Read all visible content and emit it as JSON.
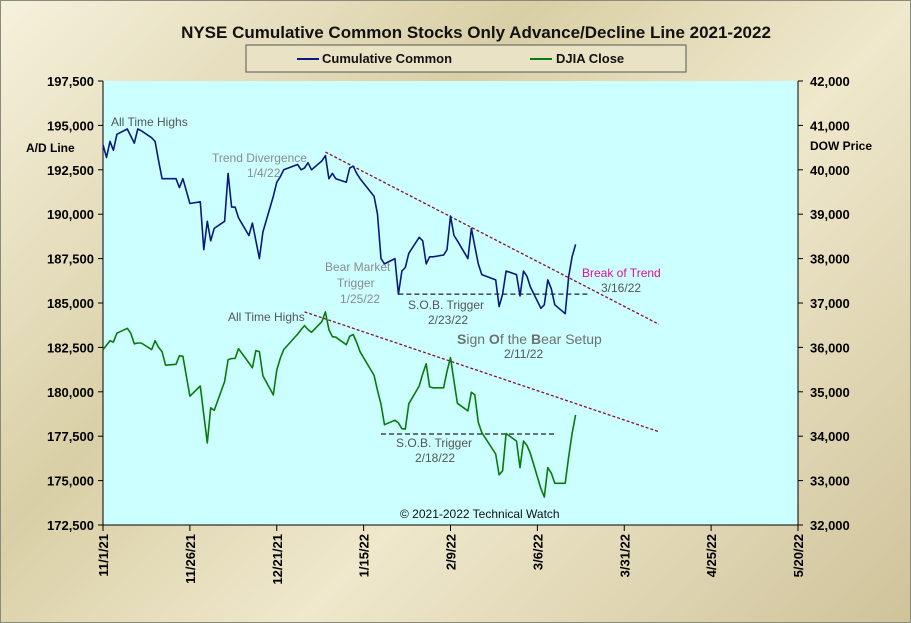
{
  "chart_data": {
    "type": "line",
    "title": "NYSE Cumulative  Common Stocks Only Advance/Decline Line 2021-2022",
    "left_axis_label": "A/D Line",
    "right_axis_label": "DOW Price",
    "copyright": "© 2021-2022  Technical Watch",
    "colors": {
      "plot_background": "#ccffff",
      "ad_line": "#0a1a7a",
      "djia": "#0a7a0a",
      "trendline": "#8b1030",
      "support": "#222222",
      "pink": "#e0109a"
    },
    "x_ticks": [
      "11/1/21",
      "11/26/21",
      "12/21/21",
      "1/15/22",
      "2/9/22",
      "3/6/22",
      "3/31/22",
      "4/25/22",
      "5/20/22"
    ],
    "x_range": [
      "2021-11-01",
      "2022-05-20"
    ],
    "y_left": {
      "range": [
        172500,
        197500
      ],
      "ticks": [
        "172,500",
        "175,000",
        "177,500",
        "180,000",
        "182,500",
        "185,000",
        "187,500",
        "190,000",
        "192,500",
        "195,000",
        "197,500"
      ]
    },
    "y_right": {
      "range": [
        32000,
        42000
      ],
      "ticks": [
        "32,000",
        "33,000",
        "34,000",
        "35,000",
        "36,000",
        "37,000",
        "38,000",
        "39,000",
        "40,000",
        "41,000",
        "42,000"
      ]
    },
    "grid": false,
    "legend": {
      "position": "top-center",
      "entries": [
        "Cumulative Common",
        "DJIA Close"
      ]
    },
    "series": [
      {
        "name": "Cumulative Common",
        "axis": "left",
        "points": [
          [
            "2021-11-01",
            193.9
          ],
          [
            "2021-11-02",
            193.2
          ],
          [
            "2021-11-03",
            194.1
          ],
          [
            "2021-11-04",
            193.6
          ],
          [
            "2021-11-05",
            194.5
          ],
          [
            "2021-11-08",
            194.8
          ],
          [
            "2021-11-09",
            194.4
          ],
          [
            "2021-11-10",
            194.0
          ],
          [
            "2021-11-11",
            194.8
          ],
          [
            "2021-11-12",
            194.7
          ],
          [
            "2021-11-15",
            194.3
          ],
          [
            "2021-11-16",
            194.1
          ],
          [
            "2021-11-17",
            193.0
          ],
          [
            "2021-11-18",
            192.0
          ],
          [
            "2021-11-19",
            192.0
          ],
          [
            "2021-11-22",
            192.0
          ],
          [
            "2021-11-23",
            191.5
          ],
          [
            "2021-11-24",
            192.0
          ],
          [
            "2021-11-26",
            190.6
          ],
          [
            "2021-11-29",
            190.7
          ],
          [
            "2021-11-30",
            188.0
          ],
          [
            "2021-12-01",
            189.6
          ],
          [
            "2021-12-02",
            188.5
          ],
          [
            "2021-12-03",
            189.2
          ],
          [
            "2021-12-06",
            189.6
          ],
          [
            "2021-12-07",
            192.3
          ],
          [
            "2021-12-08",
            190.4
          ],
          [
            "2021-12-09",
            190.4
          ],
          [
            "2021-12-10",
            189.8
          ],
          [
            "2021-12-13",
            188.8
          ],
          [
            "2021-12-14",
            189.5
          ],
          [
            "2021-12-15",
            188.5
          ],
          [
            "2021-12-16",
            187.5
          ],
          [
            "2021-12-17",
            189.0
          ],
          [
            "2021-12-20",
            191.0
          ],
          [
            "2021-12-21",
            191.8
          ],
          [
            "2021-12-22",
            192.1
          ],
          [
            "2021-12-23",
            192.5
          ],
          [
            "2021-12-27",
            192.8
          ],
          [
            "2021-12-28",
            192.5
          ],
          [
            "2021-12-29",
            192.6
          ],
          [
            "2021-12-30",
            192.9
          ],
          [
            "2021-12-31",
            192.5
          ],
          [
            "2022-01-03",
            193.0
          ],
          [
            "2022-01-04",
            193.3
          ],
          [
            "2022-01-05",
            192.0
          ],
          [
            "2022-01-06",
            192.3
          ],
          [
            "2022-01-07",
            192.0
          ],
          [
            "2022-01-10",
            191.8
          ],
          [
            "2022-01-11",
            192.6
          ],
          [
            "2022-01-12",
            192.7
          ],
          [
            "2022-01-13",
            192.3
          ],
          [
            "2022-01-14",
            192.0
          ],
          [
            "2022-01-18",
            191.0
          ],
          [
            "2022-01-19",
            190.0
          ],
          [
            "2022-01-20",
            187.5
          ],
          [
            "2022-01-21",
            187.2
          ],
          [
            "2022-01-24",
            187.5
          ],
          [
            "2022-01-25",
            185.5
          ],
          [
            "2022-01-26",
            186.8
          ],
          [
            "2022-01-27",
            187.0
          ],
          [
            "2022-01-28",
            187.8
          ],
          [
            "2022-01-31",
            188.7
          ],
          [
            "2022-02-01",
            188.5
          ],
          [
            "2022-02-02",
            187.2
          ],
          [
            "2022-02-03",
            187.6
          ],
          [
            "2022-02-04",
            187.6
          ],
          [
            "2022-02-07",
            187.7
          ],
          [
            "2022-02-08",
            188.0
          ],
          [
            "2022-02-09",
            189.9
          ],
          [
            "2022-02-10",
            188.8
          ],
          [
            "2022-02-11",
            188.5
          ],
          [
            "2022-02-14",
            187.5
          ],
          [
            "2022-02-15",
            189.2
          ],
          [
            "2022-02-16",
            188.2
          ],
          [
            "2022-02-17",
            187.2
          ],
          [
            "2022-02-18",
            186.6
          ],
          [
            "2022-02-22",
            186.3
          ],
          [
            "2022-02-23",
            184.8
          ],
          [
            "2022-02-24",
            185.5
          ],
          [
            "2022-02-25",
            186.8
          ],
          [
            "2022-02-28",
            186.6
          ],
          [
            "2022-03-01",
            185.4
          ],
          [
            "2022-03-02",
            186.8
          ],
          [
            "2022-03-03",
            186.5
          ],
          [
            "2022-03-04",
            185.9
          ],
          [
            "2022-03-07",
            184.7
          ],
          [
            "2022-03-08",
            184.9
          ],
          [
            "2022-03-09",
            186.3
          ],
          [
            "2022-03-10",
            185.8
          ],
          [
            "2022-03-11",
            184.9
          ],
          [
            "2022-03-14",
            184.4
          ],
          [
            "2022-03-15",
            186.5
          ],
          [
            "2022-03-16",
            187.6
          ],
          [
            "2022-03-17",
            188.3
          ]
        ]
      },
      {
        "name": "DJIA Close",
        "axis": "right",
        "points": [
          [
            "2021-11-01",
            35950
          ],
          [
            "2021-11-02",
            36050
          ],
          [
            "2021-11-03",
            36150
          ],
          [
            "2021-11-04",
            36120
          ],
          [
            "2021-11-05",
            36320
          ],
          [
            "2021-11-08",
            36430
          ],
          [
            "2021-11-09",
            36320
          ],
          [
            "2021-11-10",
            36080
          ],
          [
            "2021-11-11",
            36100
          ],
          [
            "2021-11-12",
            36100
          ],
          [
            "2021-11-15",
            35950
          ],
          [
            "2021-11-16",
            36150
          ],
          [
            "2021-11-17",
            36000
          ],
          [
            "2021-11-18",
            35900
          ],
          [
            "2021-11-19",
            35600
          ],
          [
            "2021-11-22",
            35620
          ],
          [
            "2021-11-23",
            35810
          ],
          [
            "2021-11-24",
            35800
          ],
          [
            "2021-11-26",
            34900
          ],
          [
            "2021-11-29",
            35130
          ],
          [
            "2021-11-30",
            34480
          ],
          [
            "2021-12-01",
            33850
          ],
          [
            "2021-12-02",
            34640
          ],
          [
            "2021-12-03",
            34580
          ],
          [
            "2021-12-06",
            35230
          ],
          [
            "2021-12-07",
            35720
          ],
          [
            "2021-12-08",
            35750
          ],
          [
            "2021-12-09",
            35750
          ],
          [
            "2021-12-10",
            35970
          ],
          [
            "2021-12-13",
            35650
          ],
          [
            "2021-12-14",
            35540
          ],
          [
            "2021-12-15",
            35930
          ],
          [
            "2021-12-16",
            35900
          ],
          [
            "2021-12-17",
            35360
          ],
          [
            "2021-12-20",
            34930
          ],
          [
            "2021-12-21",
            35490
          ],
          [
            "2021-12-22",
            35750
          ],
          [
            "2021-12-23",
            35950
          ],
          [
            "2021-12-27",
            36300
          ],
          [
            "2021-12-28",
            36400
          ],
          [
            "2021-12-29",
            36490
          ],
          [
            "2021-12-30",
            36400
          ],
          [
            "2021-12-31",
            36340
          ],
          [
            "2022-01-03",
            36580
          ],
          [
            "2022-01-04",
            36800
          ],
          [
            "2022-01-05",
            36400
          ],
          [
            "2022-01-06",
            36240
          ],
          [
            "2022-01-07",
            36230
          ],
          [
            "2022-01-10",
            36060
          ],
          [
            "2022-01-11",
            36250
          ],
          [
            "2022-01-12",
            36290
          ],
          [
            "2022-01-13",
            36110
          ],
          [
            "2022-01-14",
            35900
          ],
          [
            "2022-01-18",
            35370
          ],
          [
            "2022-01-19",
            35030
          ],
          [
            "2022-01-20",
            34720
          ],
          [
            "2022-01-21",
            34260
          ],
          [
            "2022-01-24",
            34360
          ],
          [
            "2022-01-25",
            34300
          ],
          [
            "2022-01-26",
            34170
          ],
          [
            "2022-01-27",
            34160
          ],
          [
            "2022-01-28",
            34730
          ],
          [
            "2022-01-31",
            35130
          ],
          [
            "2022-02-01",
            35400
          ],
          [
            "2022-02-02",
            35630
          ],
          [
            "2022-02-03",
            35110
          ],
          [
            "2022-02-04",
            35090
          ],
          [
            "2022-02-07",
            35090
          ],
          [
            "2022-02-08",
            35460
          ],
          [
            "2022-02-09",
            35770
          ],
          [
            "2022-02-10",
            35240
          ],
          [
            "2022-02-11",
            34740
          ],
          [
            "2022-02-14",
            34570
          ],
          [
            "2022-02-15",
            34990
          ],
          [
            "2022-02-16",
            34930
          ],
          [
            "2022-02-17",
            34310
          ],
          [
            "2022-02-18",
            34080
          ],
          [
            "2022-02-22",
            33600
          ],
          [
            "2022-02-23",
            33130
          ],
          [
            "2022-02-24",
            33220
          ],
          [
            "2022-02-25",
            34060
          ],
          [
            "2022-02-28",
            33890
          ],
          [
            "2022-03-01",
            33290
          ],
          [
            "2022-03-02",
            33890
          ],
          [
            "2022-03-03",
            33790
          ],
          [
            "2022-03-04",
            33610
          ],
          [
            "2022-03-07",
            32820
          ],
          [
            "2022-03-08",
            32630
          ],
          [
            "2022-03-09",
            33290
          ],
          [
            "2022-03-10",
            33170
          ],
          [
            "2022-03-11",
            32940
          ],
          [
            "2022-03-14",
            32940
          ],
          [
            "2022-03-15",
            33540
          ],
          [
            "2022-03-16",
            34060
          ],
          [
            "2022-03-17",
            34480
          ]
        ]
      }
    ],
    "trendlines": [
      {
        "name": "A/D Line trend",
        "axis": "left",
        "from": [
          "2022-01-04",
          193.5
        ],
        "to": [
          "2022-04-10",
          183.8
        ],
        "style": "dashed"
      },
      {
        "name": "DJIA trend",
        "axis": "right",
        "from": [
          "2021-12-29",
          36800
        ],
        "to": [
          "2022-04-10",
          34100
        ],
        "style": "dashed"
      },
      {
        "name": "A/D S.O.B. support",
        "axis": "left",
        "from": [
          "2022-01-25",
          185.5
        ],
        "to": [
          "2022-03-21",
          185.5
        ],
        "style": "dashed"
      },
      {
        "name": "DJIA S.O.B. support",
        "axis": "right",
        "from": [
          "2022-01-20",
          34050
        ],
        "to": [
          "2022-03-11",
          34050
        ],
        "style": "dashed"
      }
    ],
    "annotations": {
      "ath_top": "All Time Highs",
      "trend_div_1": "Trend  Divergence",
      "trend_div_2": "1/4/22",
      "bear_1": "Bear Market",
      "bear_2": "Trigger",
      "bear_3": "1/25/22",
      "sob_top_1": "S.O.B. Trigger",
      "sob_top_2": "2/23/22",
      "break_1": "Break  of Trend",
      "break_2": "3/16/22",
      "ath_bottom": "All Time Highs",
      "setup_s": "S",
      "setup_ign": "ign ",
      "setup_o": "O",
      "setup_f": "f the ",
      "setup_b": "B",
      "setup_rest": "ear Setup",
      "setup_date": "2/11/22",
      "sob_bot_1": "S.O.B. Trigger",
      "sob_bot_2": "2/18/22"
    }
  }
}
